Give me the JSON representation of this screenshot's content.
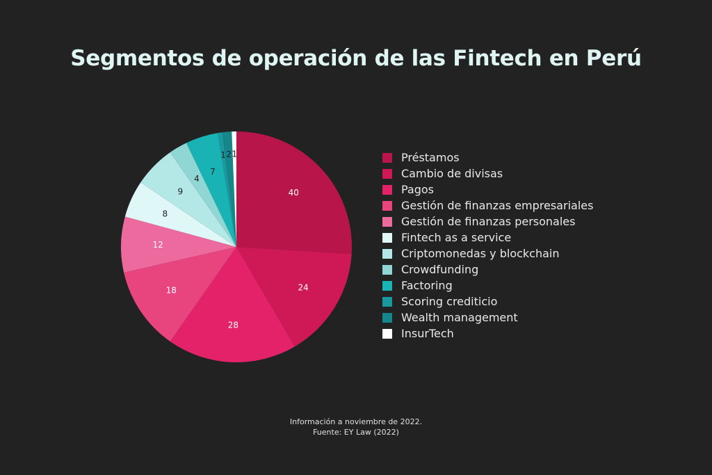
{
  "title": "Segmentos de operación de las Fintech en Perú",
  "footer": {
    "line1": "Información a noviembre de 2022.",
    "line2": "Fuente: EY Law (2022)"
  },
  "chart_data": {
    "type": "pie",
    "title": "Segmentos de operación de las Fintech en Perú",
    "legend_position": "right",
    "categories": [
      "Préstamos",
      "Cambio de divisas",
      "Pagos",
      "Gestión de finanzas empresariales",
      "Gestión de finanzas personales",
      "Fintech as a service",
      "Criptomonedas y blockchain",
      "Crowdfunding",
      "Factoring",
      "Scoring crediticio",
      "Wealth management",
      "InsurTech"
    ],
    "values": [
      40,
      24,
      28,
      18,
      12,
      8,
      9,
      4,
      7,
      1,
      2,
      1
    ],
    "colors": [
      "#b8154a",
      "#cf1957",
      "#e3226a",
      "#e8457f",
      "#ec6a9d",
      "#e0f7f8",
      "#b3e8e7",
      "#8fd6d4",
      "#1ab3b5",
      "#1a9a9e",
      "#15868a",
      "#ffffff"
    ],
    "label_colors": [
      "#ffffff",
      "#ffffff",
      "#ffffff",
      "#ffffff",
      "#ffffff",
      "#222222",
      "#222222",
      "#222222",
      "#222222",
      "#222222",
      "#222222",
      "#222222"
    ]
  }
}
